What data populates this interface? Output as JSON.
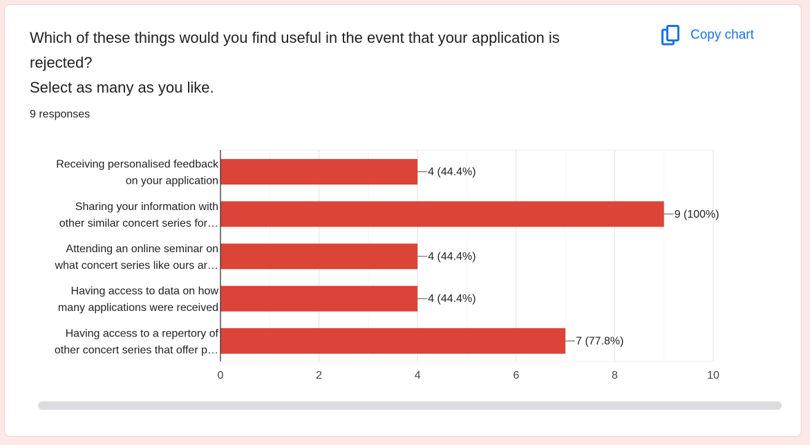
{
  "question": {
    "line1": "Which of these things would you find useful in the event that your application is",
    "line2": "rejected?",
    "line3": "Select as many as you like."
  },
  "responses": "9 responses",
  "copy_chart": {
    "label": "Copy chart",
    "icon": "copy-icon",
    "color": "#1a73e8"
  },
  "chart_data": {
    "type": "bar",
    "orientation": "horizontal",
    "bar_color": "#db4437",
    "categories": [
      [
        "Receiving personalised feedback",
        "on your application"
      ],
      [
        "Sharing your information with",
        "other similar concert series for…"
      ],
      [
        "Attending an online seminar on",
        "what concert series like ours ar…"
      ],
      [
        "Having access to data on how",
        "many applications were received"
      ],
      [
        "Having access to a repertory of",
        "other concert series that offer p…"
      ]
    ],
    "values": [
      4,
      9,
      4,
      4,
      7
    ],
    "value_labels": [
      "4 (44.4%)",
      "9 (100%)",
      "4 (44.4%)",
      "4 (44.4%)",
      "7 (77.8%)"
    ],
    "xlim": [
      0,
      10
    ],
    "xticks": [
      "0",
      "2",
      "4",
      "6",
      "8",
      "10"
    ],
    "grid": true,
    "legend": "none"
  }
}
